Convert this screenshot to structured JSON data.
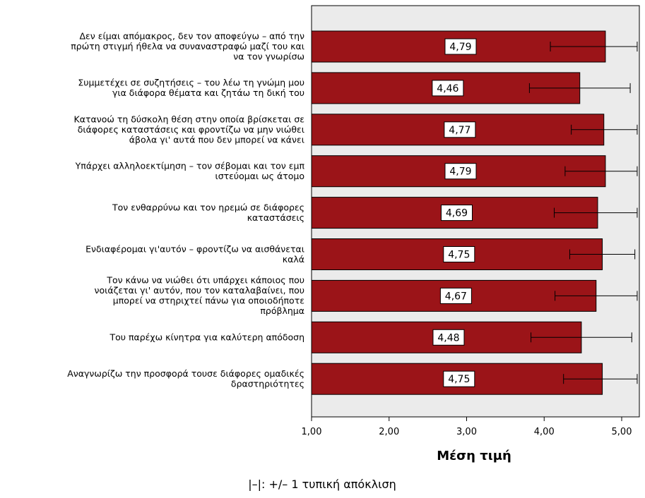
{
  "chart_data": {
    "type": "bar",
    "orientation": "horizontal",
    "categories": [
      [
        "Δεν είμαι απόμακρος, δεν τον αποφεύγω – από την",
        "πρώτη στιγμή ήθελα να συναναστραφώ μαζί του και",
        "να τον γνωρίσω"
      ],
      [
        "Συμμετέχει σε συζητήσεις  – του λέω τη γνώμη μου",
        "για διάφορα θέματα και ζητάω τη δική του"
      ],
      [
        "Κατανοώ τη δύσκολη θέση στην οποία βρίσκεται σε",
        "διάφορες καταστάσεις και φροντίζω να μην νιώθει",
        "άβολα γι' αυτά που δεν μπορεί να κάνει"
      ],
      [
        "Υπάρχει αλληλοεκτίμηση – τον σέβομαι και τον εμπ",
        "ιστεύομαι ως άτομο"
      ],
      [
        "Τον ενθαρρύνω και τον ηρεμώ σε διάφορες",
        "καταστάσεις"
      ],
      [
        "Ενδιαφέρομαι γι'αυτόν – φροντίζω να αισθάνεται",
        "καλά"
      ],
      [
        "Τον κάνω να νιώθει ότι υπάρχει κάποιος που",
        "νοιάζεται γι' αυτόν, που τον καταλαβαίνει, που",
        "μπορεί να στηριχτεί πάνω για οποιοδήποτε",
        "πρόβλημα"
      ],
      [
        "Του παρέχω κίνητρα για καλύτερη απόδοση"
      ],
      [
        "Αναγνωρίζω την προσφορά τουσε διάφορες ομαδικές",
        "δραστηριότητες"
      ]
    ],
    "values": [
      4.79,
      4.46,
      4.77,
      4.79,
      4.69,
      4.75,
      4.67,
      4.48,
      4.75
    ],
    "value_labels": [
      "4,79",
      "4,46",
      "4,77",
      "4,79",
      "4,69",
      "4,75",
      "4,67",
      "4,48",
      "4,75"
    ],
    "error_low": [
      4.08,
      3.81,
      4.35,
      4.27,
      4.13,
      4.33,
      4.14,
      3.83,
      4.25
    ],
    "error_high": [
      5.2,
      5.11,
      5.2,
      5.2,
      5.2,
      5.17,
      5.2,
      5.13,
      5.2
    ],
    "xlabel": "Μέση τιμή",
    "xlim": [
      1.0,
      5.2
    ],
    "xticks": [
      1,
      2,
      3,
      4,
      5
    ],
    "xtick_labels": [
      "1,00",
      "2,00",
      "3,00",
      "4,00",
      "5,00"
    ],
    "footnote": "|–|: +/– 1 τυπική απόκλιση",
    "grid": false,
    "colors": {
      "bar": "#9b1418",
      "plot_bg": "#ebebeb",
      "error": "#000000"
    }
  }
}
